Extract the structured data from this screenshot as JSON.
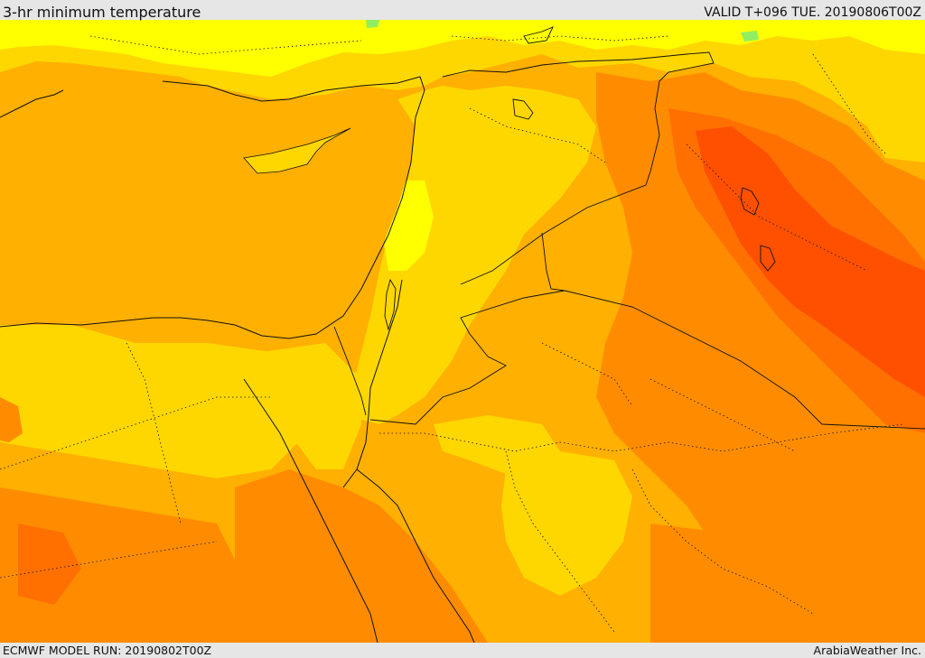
{
  "header": {
    "title": "3-hr minimum temperature",
    "valid_label": "VALID T+096 TUE. 20190806T00Z"
  },
  "footer": {
    "model_run": "ECMWF MODEL RUN: 20190802T00Z",
    "credit": "ArabiaWeather Inc."
  },
  "map": {
    "field": "3-hr minimum temperature",
    "colors": {
      "bright_yellow": "#ffff00",
      "yellow": "#ffd700",
      "light_orange": "#ffb000",
      "orange": "#ff8c00",
      "dark_orange": "#ff7000",
      "red_orange": "#ff5000",
      "green_patch": "#90ee60",
      "border": "#111111"
    }
  }
}
